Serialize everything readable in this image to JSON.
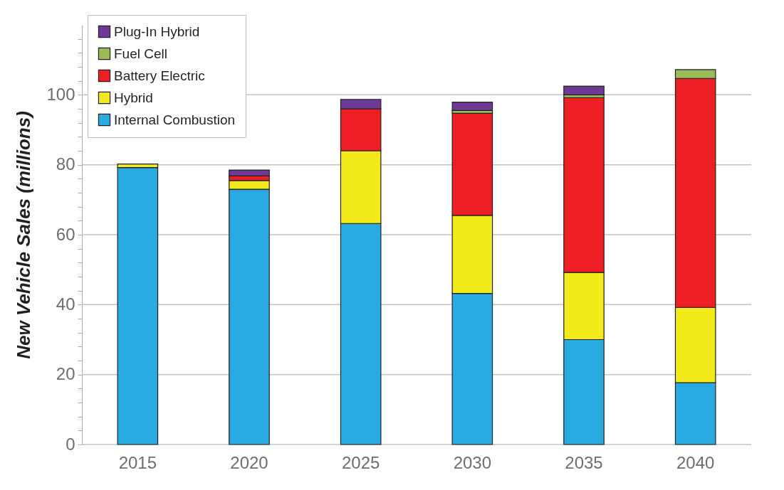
{
  "chart_data": {
    "type": "bar",
    "stacked": true,
    "ylabel": "New Vehicle Sales (millions)",
    "categories": [
      "2015",
      "2020",
      "2025",
      "2030",
      "2035",
      "2040"
    ],
    "series": [
      {
        "name": "Internal Combustion",
        "color": "#29abe2",
        "values": [
          79.2,
          73.0,
          63.2,
          43.2,
          30.0,
          17.7
        ]
      },
      {
        "name": "Hybrid",
        "color": "#f2ea1a",
        "values": [
          1.0,
          2.5,
          20.8,
          22.3,
          19.2,
          21.5
        ]
      },
      {
        "name": "Battery Electric",
        "color": "#ed1f24",
        "values": [
          null,
          1.3,
          12.0,
          29.2,
          50.0,
          65.5
        ]
      },
      {
        "name": "Fuel Cell",
        "color": "#9bbb59",
        "values": [
          null,
          null,
          null,
          0.8,
          0.8,
          2.5
        ]
      },
      {
        "name": "Plug-In Hybrid",
        "color": "#6f3996",
        "values": [
          null,
          1.7,
          2.7,
          2.4,
          2.5,
          null
        ]
      }
    ],
    "ylim": [
      0,
      120
    ],
    "yticks": [
      0,
      {
        "value": 4,
        "label": null
      },
      {
        "value": 8,
        "label": null
      },
      {
        "value": 12,
        "label": null
      },
      {
        "value": 16,
        "label": null
      },
      20,
      {
        "value": 24,
        "label": null
      },
      {
        "value": 28,
        "label": null
      },
      {
        "value": 32,
        "label": null
      },
      {
        "value": 36,
        "label": null
      },
      40,
      {
        "value": 44,
        "label": null
      },
      {
        "value": 48,
        "label": null
      },
      {
        "value": 52,
        "label": null
      },
      {
        "value": 56,
        "label": null
      },
      60,
      {
        "value": 64,
        "label": null
      },
      {
        "value": 68,
        "label": null
      },
      {
        "value": 72,
        "label": null
      },
      {
        "value": 76,
        "label": null
      },
      80,
      {
        "value": 84,
        "label": null
      },
      {
        "value": 88,
        "label": null
      },
      {
        "value": 92,
        "label": null
      },
      {
        "value": 96,
        "label": null
      },
      100,
      {
        "value": 104,
        "label": null
      },
      {
        "value": 108,
        "label": null
      },
      {
        "value": 112,
        "label": null
      },
      {
        "value": 116,
        "label": null
      }
    ],
    "grid": "y",
    "legend": "top left"
  }
}
